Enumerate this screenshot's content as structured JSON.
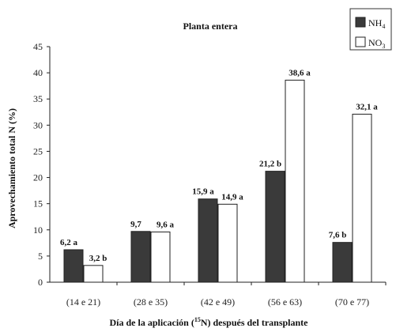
{
  "chart_data": {
    "type": "bar",
    "title": "Planta entera",
    "xlabel_prefix": "Día de la aplicación (",
    "xlabel_sup": "15",
    "xlabel_suffix": "N) después del transplante",
    "ylabel": "Aprovechamiento total N (%)",
    "ylim": [
      0,
      45
    ],
    "yticks": [
      0,
      5,
      10,
      15,
      20,
      25,
      30,
      35,
      40,
      45
    ],
    "grid": false,
    "legend_position": "top-right",
    "categories": [
      "(14 e 21)",
      "(28 e 35)",
      "(42 e 49)",
      "(56 e 63)",
      "(70 e 77)"
    ],
    "series": [
      {
        "name": "NH",
        "name_sub": "4",
        "color": "#3a3a3a",
        "values": [
          6.2,
          9.7,
          15.9,
          21.2,
          7.6
        ],
        "labels": [
          "6,2 a",
          "9,7",
          "15,9 a",
          "21,2 b",
          "7,6 b"
        ]
      },
      {
        "name": "NO",
        "name_sub": "3",
        "color": "#ffffff",
        "values": [
          3.2,
          9.6,
          14.9,
          38.6,
          32.1
        ],
        "labels": [
          "3,2 b",
          "9,6 a",
          "14,9 a",
          "38,6 a",
          "32,1 a"
        ]
      }
    ]
  }
}
